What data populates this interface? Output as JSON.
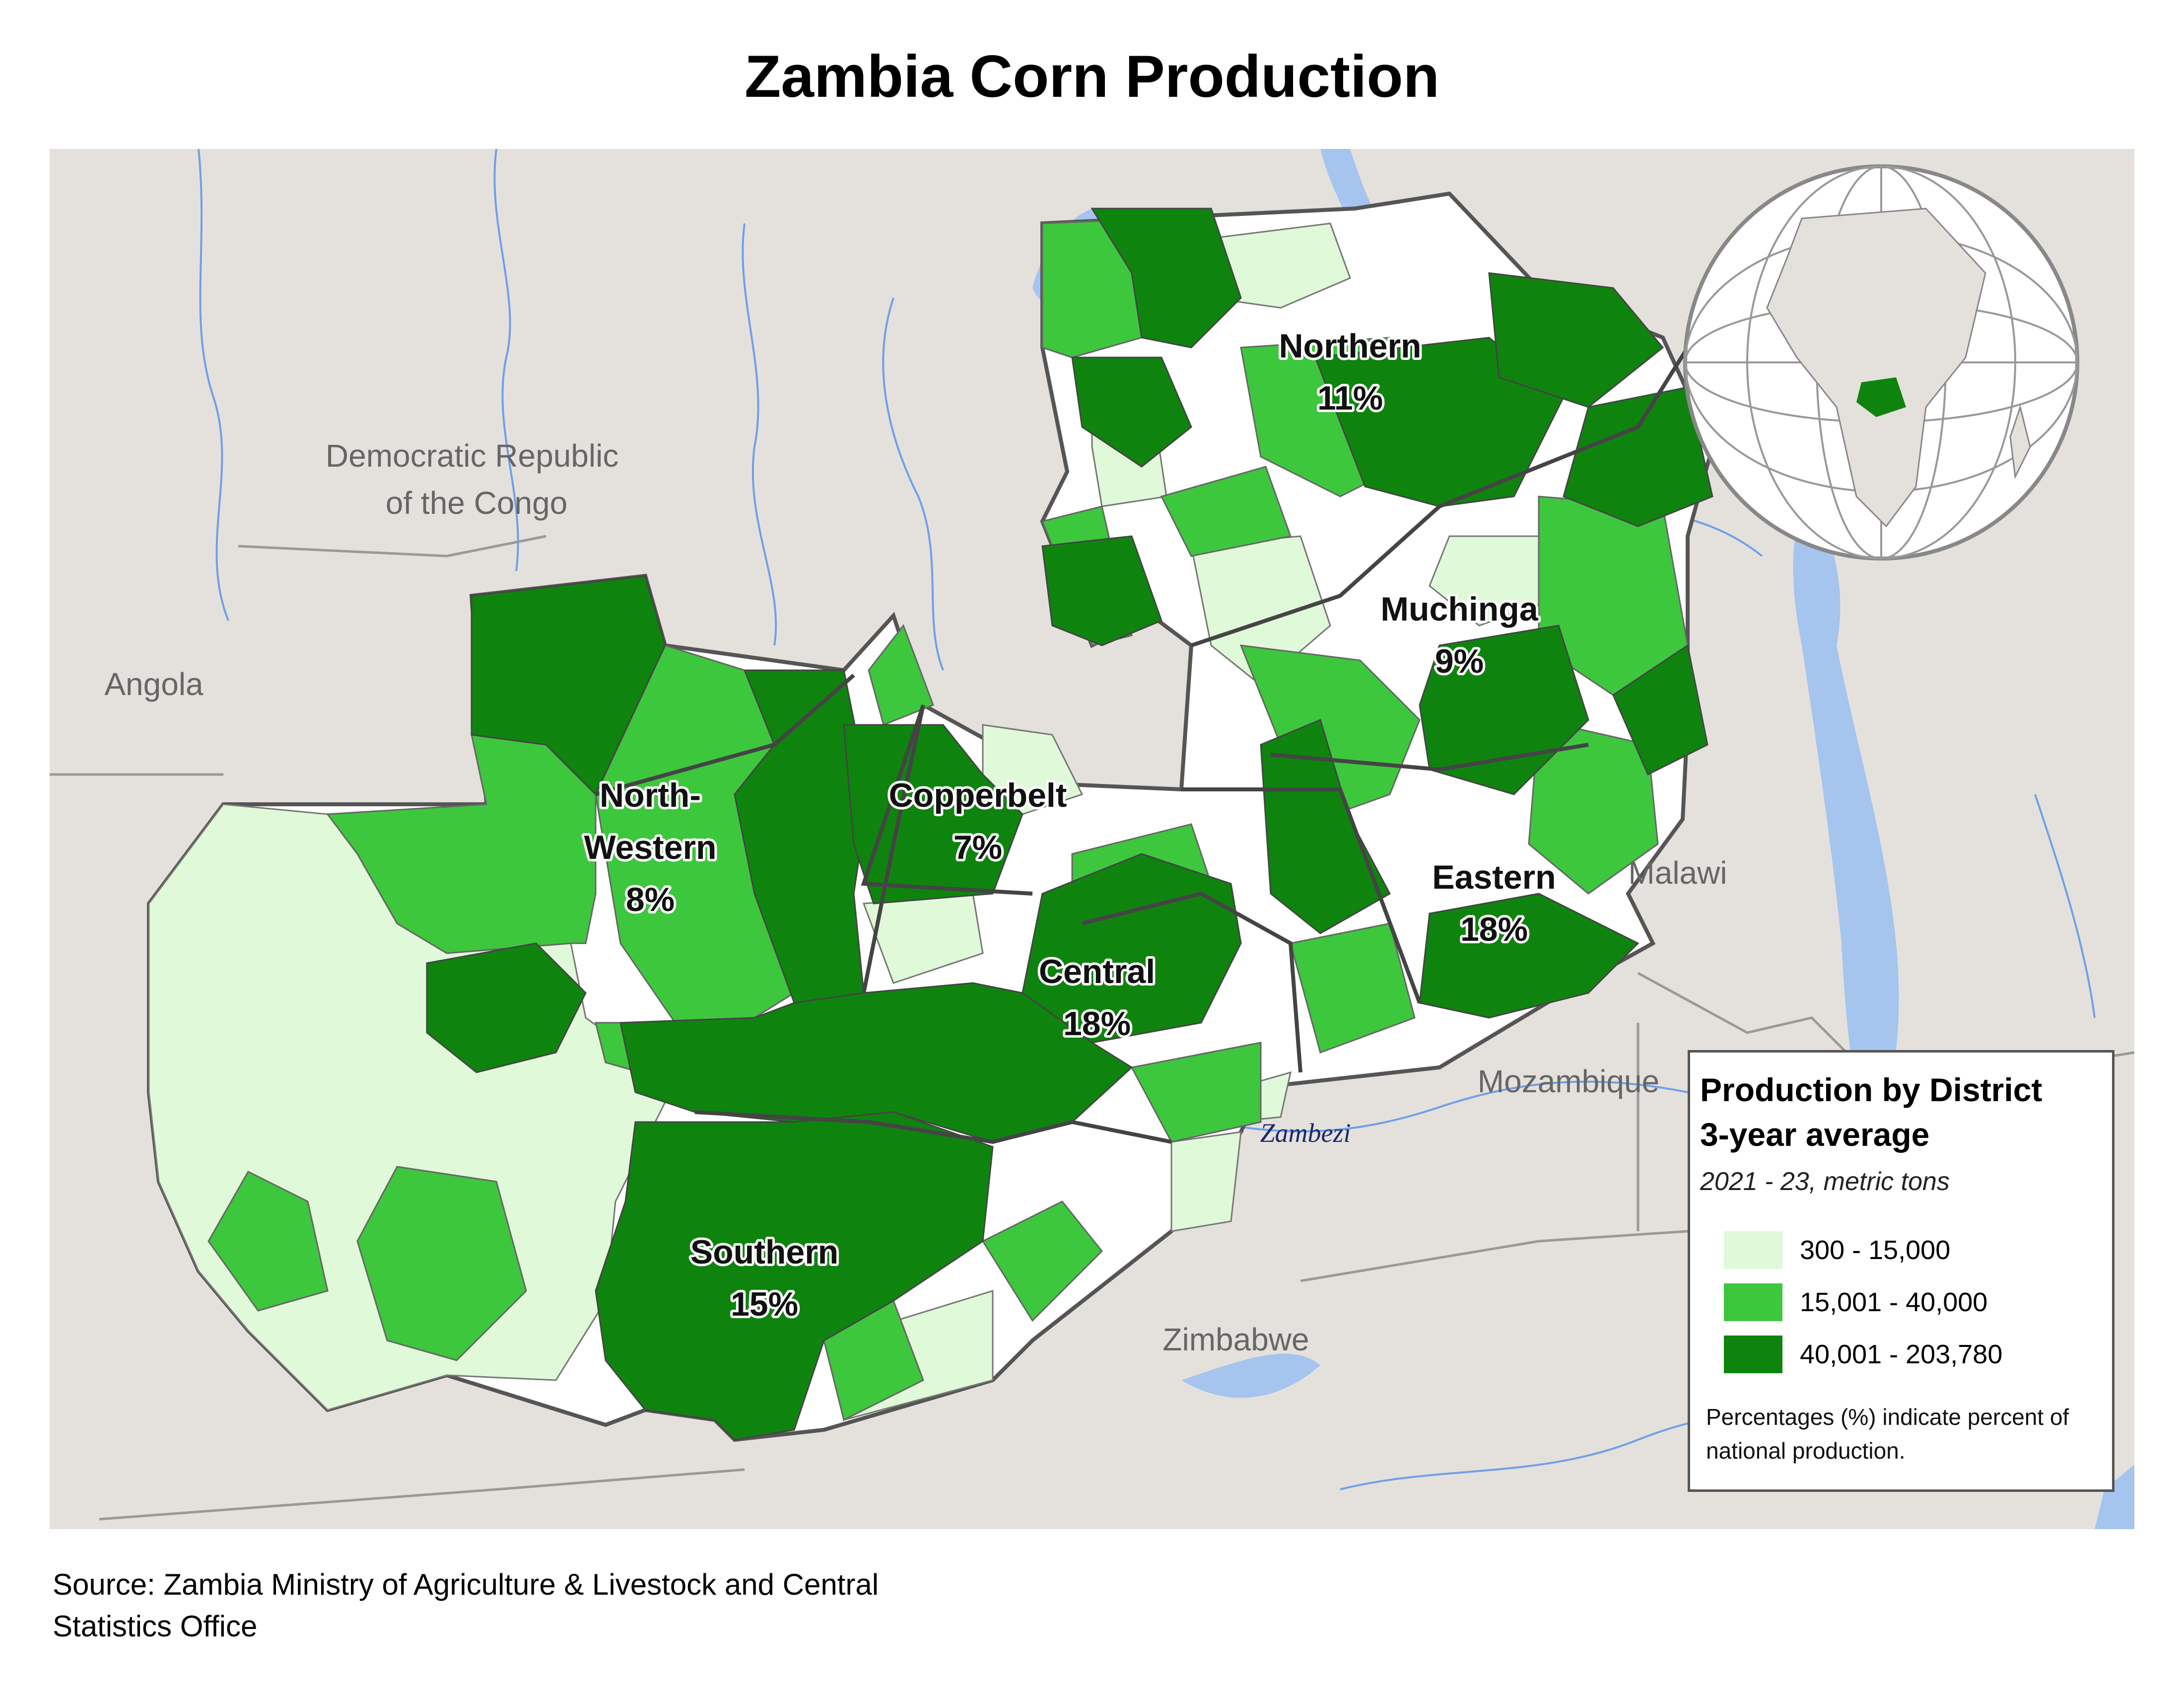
{
  "title": "Zambia Corn Production",
  "source_note": "Source: Zambia Ministry of Agriculture & Livestock and Central Statistics Office",
  "countries": {
    "drc": "Democratic Republic of the Congo",
    "angola": "Angola",
    "malawi": "Malawi",
    "mozambique": "Mozambique",
    "zimbabwe": "Zimbabwe"
  },
  "river_label": "Zambezi",
  "provinces": [
    {
      "name": "Northern",
      "pct": "11%"
    },
    {
      "name": "Muchinga",
      "pct": "9%"
    },
    {
      "name": "Copperbelt",
      "pct": "7%"
    },
    {
      "name": "North-Western",
      "name_line1": "North-",
      "name_line2": "Western",
      "pct": "8%"
    },
    {
      "name": "Central",
      "pct": "18%"
    },
    {
      "name": "Eastern",
      "pct": "18%"
    },
    {
      "name": "Southern",
      "pct": "15%"
    }
  ],
  "legend": {
    "title_line1": "Production by District",
    "title_line2": "3-year average",
    "subtitle": "2021 - 23, metric tons",
    "items": [
      {
        "label": "300 - 15,000",
        "color": "#e0f9d8"
      },
      {
        "label": "15,001 - 40,000",
        "color": "#3dc73d"
      },
      {
        "label": "40,001 - 203,780",
        "color": "#0e840e"
      }
    ],
    "note": "Percentages (%) indicate percent of national production."
  },
  "colors": {
    "land": "#e4e1dd",
    "water": "#a5c4ee",
    "border": "#555555",
    "low": "#e0f9d8",
    "mid": "#3dc73d",
    "high": "#0e840e",
    "no_data": "#ffffff"
  }
}
